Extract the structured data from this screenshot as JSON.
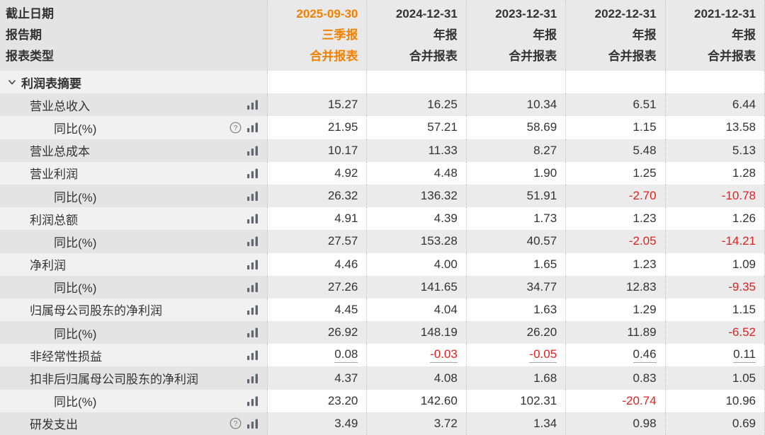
{
  "colors": {
    "accent_orange": "#f08200",
    "negative_red": "#e02020",
    "icon_gray": "#5e6673",
    "help_gray": "#808080"
  },
  "header": {
    "row_labels": {
      "end_date": "截止日期",
      "report_period": "报告期",
      "report_type": "报表类型"
    },
    "columns": [
      {
        "date": "2025-09-30",
        "period": "三季报",
        "type": "合并报表",
        "highlight": true
      },
      {
        "date": "2024-12-31",
        "period": "年报",
        "type": "合并报表",
        "highlight": false
      },
      {
        "date": "2023-12-31",
        "period": "年报",
        "type": "合并报表",
        "highlight": false
      },
      {
        "date": "2022-12-31",
        "period": "年报",
        "type": "合并报表",
        "highlight": false
      },
      {
        "date": "2021-12-31",
        "period": "年报",
        "type": "合并报表",
        "highlight": false
      }
    ]
  },
  "section": {
    "label": "利润表摘要",
    "icon": "chevron-down-icon",
    "expanded": true
  },
  "rows": [
    {
      "label": "营业总收入",
      "level": 1,
      "help": false,
      "chart": true,
      "underline": false,
      "values": [
        "15.27",
        "16.25",
        "10.34",
        "6.51",
        "6.44"
      ]
    },
    {
      "label": "同比(%)",
      "level": 2,
      "help": true,
      "chart": true,
      "underline": false,
      "values": [
        "21.95",
        "57.21",
        "58.69",
        "1.15",
        "13.58"
      ]
    },
    {
      "label": "营业总成本",
      "level": 1,
      "help": false,
      "chart": true,
      "underline": false,
      "values": [
        "10.17",
        "11.33",
        "8.27",
        "5.48",
        "5.13"
      ]
    },
    {
      "label": "营业利润",
      "level": 1,
      "help": false,
      "chart": true,
      "underline": false,
      "values": [
        "4.92",
        "4.48",
        "1.90",
        "1.25",
        "1.28"
      ]
    },
    {
      "label": "同比(%)",
      "level": 2,
      "help": false,
      "chart": true,
      "underline": false,
      "values": [
        "26.32",
        "136.32",
        "51.91",
        "-2.70",
        "-10.78"
      ]
    },
    {
      "label": "利润总额",
      "level": 1,
      "help": false,
      "chart": true,
      "underline": false,
      "values": [
        "4.91",
        "4.39",
        "1.73",
        "1.23",
        "1.26"
      ]
    },
    {
      "label": "同比(%)",
      "level": 2,
      "help": false,
      "chart": true,
      "underline": false,
      "values": [
        "27.57",
        "153.28",
        "40.57",
        "-2.05",
        "-14.21"
      ]
    },
    {
      "label": "净利润",
      "level": 1,
      "help": false,
      "chart": true,
      "underline": false,
      "values": [
        "4.46",
        "4.00",
        "1.65",
        "1.23",
        "1.09"
      ]
    },
    {
      "label": "同比(%)",
      "level": 2,
      "help": false,
      "chart": true,
      "underline": false,
      "values": [
        "27.26",
        "141.65",
        "34.77",
        "12.83",
        "-9.35"
      ]
    },
    {
      "label": "归属母公司股东的净利润",
      "level": 1,
      "help": false,
      "chart": true,
      "underline": false,
      "values": [
        "4.45",
        "4.04",
        "1.63",
        "1.29",
        "1.15"
      ]
    },
    {
      "label": "同比(%)",
      "level": 2,
      "help": false,
      "chart": true,
      "underline": false,
      "values": [
        "26.92",
        "148.19",
        "26.20",
        "11.89",
        "-6.52"
      ]
    },
    {
      "label": "非经常性损益",
      "level": 1,
      "help": false,
      "chart": true,
      "underline": true,
      "values": [
        "0.08",
        "-0.03",
        "-0.05",
        "0.46",
        "0.11"
      ]
    },
    {
      "label": "扣非后归属母公司股东的净利润",
      "level": 1,
      "help": false,
      "chart": true,
      "underline": false,
      "values": [
        "4.37",
        "4.08",
        "1.68",
        "0.83",
        "1.05"
      ]
    },
    {
      "label": "同比(%)",
      "level": 2,
      "help": false,
      "chart": true,
      "underline": false,
      "values": [
        "23.20",
        "142.60",
        "102.31",
        "-20.74",
        "10.96"
      ]
    },
    {
      "label": "研发支出",
      "level": 1,
      "help": true,
      "chart": true,
      "underline": false,
      "values": [
        "3.49",
        "3.72",
        "1.34",
        "0.98",
        "0.69"
      ]
    }
  ]
}
